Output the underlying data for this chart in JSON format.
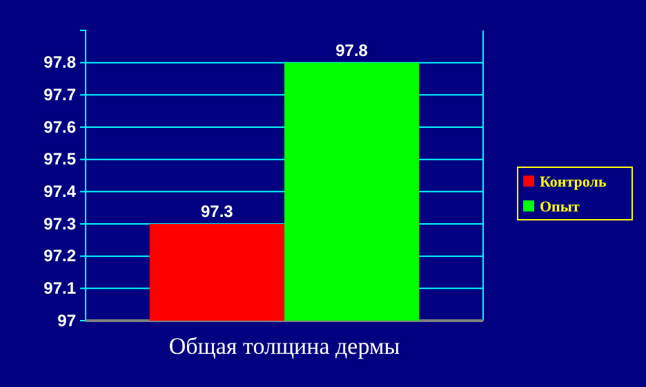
{
  "chart_data": {
    "type": "bar",
    "categories": [
      "Общая толщина дермы"
    ],
    "series": [
      {
        "name": "Контроль",
        "color": "#ff0000",
        "values": [
          97.3
        ]
      },
      {
        "name": "Опыт",
        "color": "#00ff00",
        "values": [
          97.8
        ]
      }
    ],
    "ylim": [
      97,
      97.9
    ],
    "yticks": [
      97,
      97.1,
      97.2,
      97.3,
      97.4,
      97.5,
      97.6,
      97.7,
      97.8
    ],
    "grid": "y",
    "legend": "right",
    "data_labels": true
  }
}
